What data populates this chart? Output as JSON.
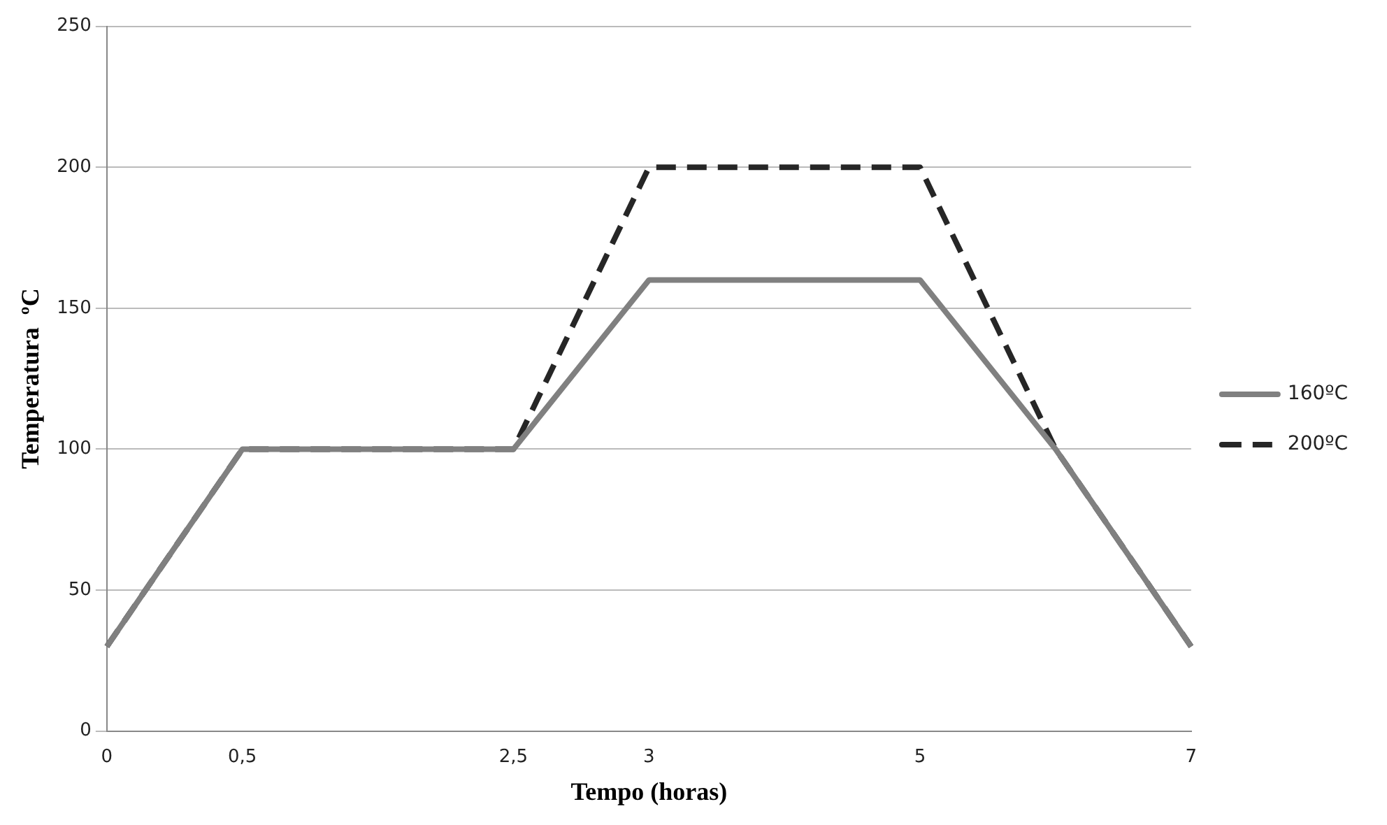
{
  "chart_data": {
    "type": "line",
    "xlabel": "Tempo (horas)",
    "ylabel": "Temperatura  ºC",
    "categories": [
      "0",
      "0,5",
      null,
      "2,5",
      "3",
      null,
      "5",
      null,
      "7"
    ],
    "series": [
      {
        "name": "160ºC",
        "color": "#808080",
        "line_style": "solid",
        "values": [
          30,
          100,
          100,
          100,
          160,
          160,
          160,
          100,
          30
        ]
      },
      {
        "name": "200ºC",
        "color": "#262626",
        "line_style": "dashed",
        "values": [
          30,
          100,
          100,
          100,
          200,
          200,
          200,
          100,
          30
        ]
      }
    ],
    "ylim": [
      0,
      250
    ],
    "yticks": [
      0,
      50,
      100,
      150,
      200,
      250
    ],
    "grid": "y",
    "legend": "right",
    "marker": "none"
  }
}
